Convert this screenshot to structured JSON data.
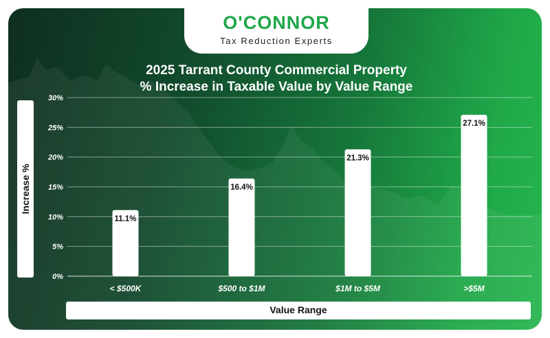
{
  "brand": {
    "name": "O'CONNOR",
    "tagline": "Tax Reduction Experts",
    "color": "#1ea748"
  },
  "chart_data": {
    "type": "bar",
    "title_line1": "2025 Tarrant County Commercial Property",
    "title_line2": "% Increase in Taxable Value by Value Range",
    "xlabel": "Value Range",
    "ylabel": "Increase %",
    "categories": [
      "< $500K",
      "$500 to $1M",
      "$1M to $5M",
      ">$5M"
    ],
    "values": [
      11.1,
      16.4,
      21.3,
      27.1
    ],
    "value_labels": [
      "11.1%",
      "16.4%",
      "21.3%",
      "27.1%"
    ],
    "ylim": [
      0,
      30
    ],
    "yticks": [
      "0%",
      "5%",
      "10%",
      "15%",
      "20%",
      "25%",
      "30%"
    ],
    "grid": true,
    "bar_color": "#ffffff"
  }
}
